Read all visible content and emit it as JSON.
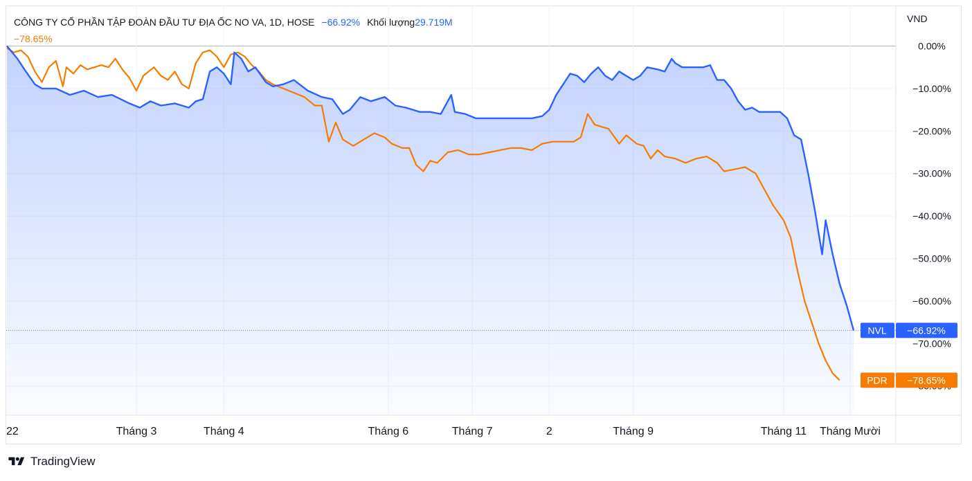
{
  "legend": {
    "title": "CÔNG TY CỔ PHẦN TẬP ĐOÀN ĐẦU TƯ ĐỊA ỐC NO VA, 1D, HOSE",
    "main_change": "−66.92%",
    "volume_label": "Khối lượng",
    "volume_value": "29.719M",
    "compare_change": "−78.65%"
  },
  "brand": {
    "name": "TradingView"
  },
  "colors": {
    "nvl": "#2962ff",
    "pdr": "#f57c00",
    "grid": "#f0f3fa",
    "text": "#131722"
  },
  "chart_data": {
    "type": "line",
    "currency_label": "VND",
    "ylim": [
      -83,
      0
    ],
    "y_ticks": [
      "0.00%",
      "−10.00%",
      "−20.00%",
      "−30.00%",
      "−40.00%",
      "−50.00%",
      "−60.00%",
      "−70.00%",
      "−80.00%"
    ],
    "x_ticks": [
      "22",
      "Tháng 3",
      "Tháng 4",
      "Tháng 6",
      "Tháng 7",
      "2",
      "Tháng 9",
      "Tháng 11",
      "Tháng Mười"
    ],
    "x_tick_index": [
      0,
      37,
      62,
      109,
      133,
      155,
      179,
      222,
      241
    ],
    "series": [
      {
        "name": "NVL",
        "label": "−66.92%",
        "last": -66.92,
        "color": "#2962ff",
        "points": [
          [
            0,
            0
          ],
          [
            3,
            -3
          ],
          [
            5,
            -5.5
          ],
          [
            8,
            -9
          ],
          [
            10,
            -10
          ],
          [
            14,
            -10
          ],
          [
            18,
            -11.5
          ],
          [
            22,
            -10.5
          ],
          [
            26,
            -12
          ],
          [
            30,
            -11.5
          ],
          [
            35,
            -13.5
          ],
          [
            38,
            -14.5
          ],
          [
            41,
            -13
          ],
          [
            44,
            -14
          ],
          [
            48,
            -13.5
          ],
          [
            52,
            -14.5
          ],
          [
            54,
            -13
          ],
          [
            56,
            -12.5
          ],
          [
            58,
            -6
          ],
          [
            60,
            -5
          ],
          [
            62,
            -6.5
          ],
          [
            64,
            -9
          ],
          [
            65,
            -1.5
          ],
          [
            67,
            -3
          ],
          [
            69,
            -6
          ],
          [
            71,
            -5
          ],
          [
            74,
            -8.5
          ],
          [
            76,
            -9.5
          ],
          [
            79,
            -9
          ],
          [
            82,
            -8
          ],
          [
            86,
            -10.5
          ],
          [
            90,
            -12
          ],
          [
            93,
            -12.5
          ],
          [
            96,
            -16
          ],
          [
            98,
            -15
          ],
          [
            101,
            -12
          ],
          [
            104,
            -13
          ],
          [
            108,
            -12
          ],
          [
            111,
            -14
          ],
          [
            114,
            -14.5
          ],
          [
            118,
            -15.5
          ],
          [
            121,
            -15.5
          ],
          [
            124,
            -16
          ],
          [
            127,
            -11.5
          ],
          [
            128,
            -15.5
          ],
          [
            131,
            -16
          ],
          [
            134,
            -17
          ],
          [
            137,
            -17
          ],
          [
            140,
            -17
          ],
          [
            143,
            -17
          ],
          [
            146,
            -17
          ],
          [
            150,
            -17
          ],
          [
            153,
            -16.5
          ],
          [
            155,
            -15
          ],
          [
            157,
            -11.5
          ],
          [
            159,
            -9
          ],
          [
            161,
            -6.5
          ],
          [
            163,
            -7
          ],
          [
            165,
            -8.5
          ],
          [
            167,
            -6.5
          ],
          [
            169,
            -5
          ],
          [
            171,
            -7
          ],
          [
            173,
            -8
          ],
          [
            175,
            -6
          ],
          [
            177,
            -7
          ],
          [
            179,
            -8
          ],
          [
            181,
            -7
          ],
          [
            183,
            -5
          ],
          [
            186,
            -5.5
          ],
          [
            188,
            -6
          ],
          [
            190,
            -3
          ],
          [
            191,
            -4
          ],
          [
            193,
            -5
          ],
          [
            196,
            -5
          ],
          [
            199,
            -5
          ],
          [
            201,
            -4.5
          ],
          [
            203,
            -8
          ],
          [
            205,
            -8
          ],
          [
            207,
            -10
          ],
          [
            209,
            -13
          ],
          [
            211,
            -15
          ],
          [
            213,
            -14.5
          ],
          [
            215,
            -15.5
          ],
          [
            218,
            -15.5
          ],
          [
            221,
            -15.5
          ],
          [
            223,
            -17
          ],
          [
            225,
            -21
          ],
          [
            227,
            -22
          ],
          [
            229,
            -30
          ],
          [
            231,
            -39
          ],
          [
            233,
            -49
          ],
          [
            234,
            -41
          ],
          [
            236,
            -49
          ],
          [
            238,
            -56
          ],
          [
            240,
            -61
          ],
          [
            242,
            -66.92
          ]
        ]
      },
      {
        "name": "PDR",
        "label": "−78.65%",
        "last": -78.65,
        "color": "#f57c00",
        "points": [
          [
            0,
            -0.5
          ],
          [
            2,
            -1.5
          ],
          [
            4,
            -1
          ],
          [
            6,
            -2.5
          ],
          [
            8,
            -6
          ],
          [
            10,
            -8.5
          ],
          [
            12,
            -5
          ],
          [
            14,
            -3.5
          ],
          [
            16,
            -9.5
          ],
          [
            17,
            -5
          ],
          [
            19,
            -6.5
          ],
          [
            21,
            -4.5
          ],
          [
            23,
            -5.5
          ],
          [
            25,
            -5
          ],
          [
            27,
            -4.5
          ],
          [
            29,
            -5
          ],
          [
            31,
            -3
          ],
          [
            33,
            -5.5
          ],
          [
            35,
            -7.5
          ],
          [
            37,
            -10.5
          ],
          [
            39,
            -7
          ],
          [
            42,
            -5
          ],
          [
            44,
            -7
          ],
          [
            46,
            -8
          ],
          [
            48,
            -6
          ],
          [
            50,
            -9
          ],
          [
            52,
            -10
          ],
          [
            54,
            -4
          ],
          [
            56,
            -1.5
          ],
          [
            58,
            -1
          ],
          [
            60,
            -2.5
          ],
          [
            62,
            -5
          ],
          [
            64,
            -2
          ],
          [
            66,
            -1.5
          ],
          [
            68,
            -2.5
          ],
          [
            70,
            -4.5
          ],
          [
            72,
            -6
          ],
          [
            74,
            -8
          ],
          [
            76,
            -9
          ],
          [
            79,
            -10
          ],
          [
            82,
            -11
          ],
          [
            85,
            -12
          ],
          [
            88,
            -14
          ],
          [
            90,
            -14
          ],
          [
            92,
            -22.5
          ],
          [
            94,
            -18
          ],
          [
            96,
            -22
          ],
          [
            99,
            -23.5
          ],
          [
            102,
            -22
          ],
          [
            105,
            -20.5
          ],
          [
            108,
            -21.5
          ],
          [
            110,
            -23
          ],
          [
            113,
            -24
          ],
          [
            115,
            -24
          ],
          [
            117,
            -28
          ],
          [
            119,
            -29.5
          ],
          [
            121,
            -27
          ],
          [
            123,
            -27.5
          ],
          [
            126,
            -25
          ],
          [
            129,
            -24.5
          ],
          [
            132,
            -25.5
          ],
          [
            135,
            -25.5
          ],
          [
            138,
            -25
          ],
          [
            141,
            -24.5
          ],
          [
            144,
            -24
          ],
          [
            147,
            -24
          ],
          [
            150,
            -24.5
          ],
          [
            153,
            -23
          ],
          [
            156,
            -22.5
          ],
          [
            159,
            -22.5
          ],
          [
            162,
            -22.5
          ],
          [
            164,
            -21.5
          ],
          [
            166,
            -16
          ],
          [
            168,
            -18.5
          ],
          [
            170,
            -19
          ],
          [
            172,
            -19.5
          ],
          [
            175,
            -23
          ],
          [
            177,
            -21
          ],
          [
            180,
            -23
          ],
          [
            182,
            -23.5
          ],
          [
            184,
            -26.5
          ],
          [
            186,
            -24.5
          ],
          [
            188,
            -26
          ],
          [
            191,
            -26.5
          ],
          [
            194,
            -27.5
          ],
          [
            197,
            -26.5
          ],
          [
            200,
            -26
          ],
          [
            203,
            -27.5
          ],
          [
            205,
            -29.5
          ],
          [
            208,
            -29
          ],
          [
            211,
            -28.5
          ],
          [
            214,
            -30
          ],
          [
            216,
            -33
          ],
          [
            219,
            -37.5
          ],
          [
            222,
            -41
          ],
          [
            224,
            -45
          ],
          [
            226,
            -53
          ],
          [
            228,
            -60
          ],
          [
            230,
            -65
          ],
          [
            232,
            -70
          ],
          [
            234,
            -74
          ],
          [
            236,
            -77
          ],
          [
            238,
            -78.65
          ]
        ]
      }
    ]
  }
}
